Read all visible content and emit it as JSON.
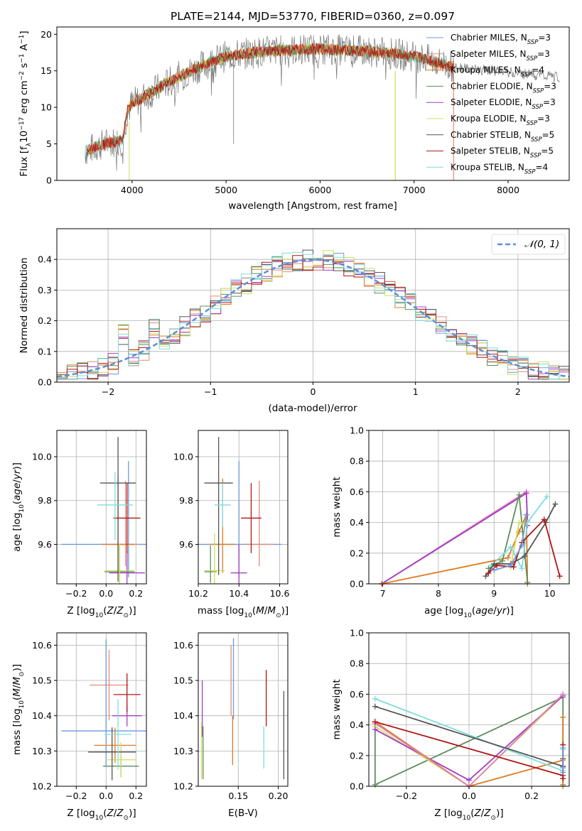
{
  "colors": {
    "chabrier_miles": "#6f98dd",
    "salpeter_miles": "#e48b78",
    "kroupa_miles": "#e07a22",
    "chabrier_elodie": "#5d8d5d",
    "salpeter_elodie": "#a23fc4",
    "kroupa_elodie": "#cde05a",
    "chabrier_stelib": "#555555",
    "salpeter_stelib": "#b01515",
    "kroupa_stelib": "#80dcdc",
    "pink_line": "#e07fb6",
    "gaussian": "#5b8fd6",
    "grid": "#b0b0b0"
  },
  "chart_data": [
    {
      "id": "spectrum",
      "type": "line",
      "title": "PLATE=2144, MJD=53770, FIBERID=0360, z=0.097",
      "xlabel": "wavelength [Angstrom, rest frame]",
      "ylabel": "Flux [fλ10⁻¹⁷ erg cm⁻² s⁻¹ A⁻¹]",
      "xlim": [
        3200,
        8650
      ],
      "ylim": [
        0,
        21
      ],
      "xticks": [
        "4000",
        "5000",
        "6000",
        "7000",
        "8000"
      ],
      "yticks": [
        "0",
        "5",
        "10",
        "15",
        "20"
      ],
      "grid": false,
      "legend_position": "right",
      "legend": [
        {
          "label": "Chabrier MILES, N",
          "sub": "SSP",
          "suffix": "=3",
          "color": "chabrier_miles"
        },
        {
          "label": "Salpeter MILES, N",
          "sub": "SSP",
          "suffix": "=3",
          "color": "salpeter_miles"
        },
        {
          "label": "Kroupa MILES, N",
          "sub": "SSP",
          "suffix": "=4",
          "color": "kroupa_miles"
        },
        {
          "label": "Chabrier ELODIE, N",
          "sub": "SSP",
          "suffix": "=3",
          "color": "chabrier_elodie"
        },
        {
          "label": "Salpeter ELODIE, N",
          "sub": "SSP",
          "suffix": "=3",
          "color": "salpeter_elodie"
        },
        {
          "label": "Kroupa ELODIE, N",
          "sub": "SSP",
          "suffix": "=3",
          "color": "kroupa_elodie"
        },
        {
          "label": "Chabrier STELIB, N",
          "sub": "SSP",
          "suffix": "=5",
          "color": "chabrier_stelib"
        },
        {
          "label": "Salpeter STELIB, N",
          "sub": "SSP",
          "suffix": "=5",
          "color": "salpeter_stelib"
        },
        {
          "label": "Kroupa STELIB, N",
          "sub": "SSP",
          "suffix": "=4",
          "color": "kroupa_stelib"
        }
      ],
      "continuum": {
        "x": [
          3500,
          3700,
          3900,
          3950,
          4000,
          4200,
          4500,
          4800,
          5000,
          5300,
          5600,
          6000,
          6300,
          6600,
          7000,
          7300,
          7420
        ],
        "y": [
          4.0,
          5.0,
          5.5,
          9.5,
          10.5,
          12.0,
          14.2,
          16.0,
          17.0,
          17.5,
          17.8,
          18.0,
          17.8,
          17.6,
          17.0,
          16.0,
          15.5
        ]
      },
      "ranges": [
        {
          "series": "data",
          "x": [
            3500,
            8550
          ]
        },
        {
          "series": "kroupa_stelib",
          "x": [
            3500,
            7420
          ]
        },
        {
          "series": "kroupa_elodie",
          "x": [
            3900,
            6800
          ]
        },
        {
          "series": "kroupa_miles",
          "x": [
            3520,
            7420
          ]
        },
        {
          "series": "salpeter_miles",
          "x": [
            3520,
            7420
          ]
        }
      ]
    },
    {
      "id": "residuals",
      "type": "line",
      "xlabel": "(data-model)/error",
      "ylabel": "Normed distribution",
      "xlim": [
        -2.5,
        2.5
      ],
      "ylim": [
        0,
        0.5
      ],
      "xticks": [
        "−2",
        "−1",
        "0",
        "1",
        "2"
      ],
      "yticks": [
        "0.0",
        "0.1",
        "0.2",
        "0.3",
        "0.4"
      ],
      "grid": true,
      "legend_position": "upper right",
      "legend": [
        {
          "label": "𝒩(0, 1)",
          "color": "gaussian",
          "style": "dashed"
        }
      ],
      "bin_width": 0.1
    },
    {
      "id": "age-vs-Z",
      "type": "scatter",
      "xlabel": "Z [log₁₀(Z/Z⊙)]",
      "ylabel": "age  [log₁₀(age/yr)]",
      "xlim": [
        -0.33,
        0.27
      ],
      "ylim": [
        9.42,
        10.12
      ],
      "xticks": [
        "−0.2",
        "0.0",
        "0.2"
      ],
      "yticks": [
        "9.6",
        "9.8",
        "10.0"
      ],
      "grid": true,
      "points": [
        {
          "series": "chabrier_miles",
          "x": 0.15,
          "xerr": 0.45,
          "y": 9.6,
          "yerr_low": 0.15,
          "yerr_high": 0.38
        },
        {
          "series": "salpeter_miles",
          "x": 0.13,
          "xerr": 0.09,
          "y": 9.6,
          "yerr_low": 0.1,
          "yerr_high": 0.29
        },
        {
          "series": "kroupa_miles",
          "x": 0.08,
          "xerr": 0.11,
          "y": 9.6,
          "yerr_low": 0.13,
          "yerr_high": 0.31
        },
        {
          "series": "chabrier_elodie",
          "x": 0.09,
          "xerr": 0.1,
          "y": 9.475,
          "yerr_low": 0.05,
          "yerr_high": 0.12
        },
        {
          "series": "salpeter_elodie",
          "x": 0.14,
          "xerr": 0.12,
          "y": 9.47,
          "yerr_low": 0.05,
          "yerr_high": 0.1
        },
        {
          "series": "kroupa_elodie",
          "x": 0.09,
          "xerr": 0.1,
          "y": 9.48,
          "yerr_low": 0.06,
          "yerr_high": 0.12
        },
        {
          "series": "chabrier_stelib",
          "x": 0.08,
          "xerr": 0.12,
          "y": 9.88,
          "yerr_low": 0.45,
          "yerr_high": 0.21
        },
        {
          "series": "salpeter_stelib",
          "x": 0.14,
          "xerr": 0.09,
          "y": 9.72,
          "yerr_low": 0.16,
          "yerr_high": 0.16
        },
        {
          "series": "kroupa_stelib",
          "x": 0.06,
          "xerr": 0.12,
          "y": 9.78,
          "yerr_low": 0.16,
          "yerr_high": 0.15
        }
      ]
    },
    {
      "id": "age-vs-mass",
      "type": "scatter",
      "xlabel": "mass [log₁₀(M/M⊙)]",
      "ylabel": "",
      "xlim": [
        10.2,
        10.64
      ],
      "ylim": [
        9.42,
        10.12
      ],
      "xticks": [
        "10.2",
        "10.4",
        "10.6"
      ],
      "yticks": [
        "9.6",
        "9.8",
        "10.0"
      ],
      "grid": true,
      "points": [
        {
          "series": "chabrier_miles",
          "x": 10.4,
          "xerr": 0.21,
          "y": 9.6,
          "yerr_low": 0.15,
          "yerr_high": 0.38
        },
        {
          "series": "salpeter_miles",
          "x": 10.5,
          "xerr": 0.07,
          "y": 9.6,
          "yerr_low": 0.1,
          "yerr_high": 0.29
        },
        {
          "series": "kroupa_miles",
          "x": 10.32,
          "xerr": 0.06,
          "y": 9.6,
          "yerr_low": 0.13,
          "yerr_high": 0.3
        },
        {
          "series": "chabrier_elodie",
          "x": 10.26,
          "xerr": 0.03,
          "y": 9.475,
          "yerr_low": 0.05,
          "yerr_high": 0.12
        },
        {
          "series": "salpeter_elodie",
          "x": 10.4,
          "xerr": 0.04,
          "y": 9.47,
          "yerr_low": 0.05,
          "yerr_high": 0.13
        },
        {
          "series": "kroupa_elodie",
          "x": 10.28,
          "xerr": 0.05,
          "y": 9.48,
          "yerr_low": 0.06,
          "yerr_high": 0.17
        },
        {
          "series": "chabrier_stelib",
          "x": 10.3,
          "xerr": 0.07,
          "y": 9.88,
          "yerr_low": 0.42,
          "yerr_high": 0.21
        },
        {
          "series": "salpeter_stelib",
          "x": 10.46,
          "xerr": 0.05,
          "y": 9.72,
          "yerr_low": 0.16,
          "yerr_high": 0.16
        },
        {
          "series": "kroupa_stelib",
          "x": 10.32,
          "xerr": 0.04,
          "y": 9.78,
          "yerr_low": 0.1,
          "yerr_high": 0.1
        }
      ]
    },
    {
      "id": "weight-vs-age",
      "type": "line",
      "xlabel": "age  [log₁₀(age/yr)]",
      "ylabel": "mass weight",
      "xlim": [
        6.75,
        10.35
      ],
      "ylim": [
        0,
        1.0
      ],
      "xticks": [
        "7",
        "8",
        "9",
        "10"
      ],
      "yticks": [
        "0.0",
        "0.2",
        "0.4",
        "0.6",
        "0.8",
        "1.0"
      ],
      "grid": true,
      "series": [
        {
          "name": "pink_line",
          "x": [
            6.98,
            9.58,
            9.6
          ],
          "y": [
            0.0,
            0.6,
            0.41
          ]
        },
        {
          "name": "salpeter_elodie",
          "x": [
            6.98,
            9.58,
            9.6
          ],
          "y": [
            0.0,
            0.59,
            0.38
          ]
        },
        {
          "name": "kroupa_miles",
          "x": [
            6.98,
            9.25,
            9.45,
            9.58,
            9.6
          ],
          "y": [
            0.0,
            0.17,
            0.34,
            0.45,
            0.0
          ]
        },
        {
          "name": "chabrier_elodie",
          "x": [
            8.9,
            9.15,
            9.45,
            9.6
          ],
          "y": [
            0.1,
            0.15,
            0.58,
            0.01
          ]
        },
        {
          "name": "kroupa_elodie",
          "x": [
            9.3,
            9.45,
            9.55
          ],
          "y": [
            0.11,
            0.4,
            0.39
          ]
        },
        {
          "name": "kroupa_stelib",
          "x": [
            8.95,
            9.3,
            9.5,
            9.6,
            9.95
          ],
          "y": [
            0.12,
            0.24,
            0.1,
            0.4,
            0.57
          ]
        },
        {
          "name": "chabrier_stelib",
          "x": [
            8.85,
            9.0,
            9.3,
            9.55,
            9.93,
            10.1
          ],
          "y": [
            0.05,
            0.13,
            0.13,
            0.18,
            0.4,
            0.52
          ]
        },
        {
          "name": "salpeter_stelib",
          "x": [
            8.9,
            9.05,
            9.35,
            9.5,
            9.9,
            10.18
          ],
          "y": [
            0.07,
            0.12,
            0.11,
            0.27,
            0.42,
            0.05
          ]
        },
        {
          "name": "chabrier_miles",
          "x": [
            9.0,
            9.3,
            9.5,
            9.58
          ],
          "y": [
            0.09,
            0.12,
            0.25,
            0.45
          ]
        }
      ]
    },
    {
      "id": "mass-vs-Z",
      "type": "scatter",
      "xlabel": "Z [log₁₀(Z/Z⊙)]",
      "ylabel": "mass [log₁₀(M/M⊙)]",
      "xlim": [
        -0.33,
        0.27
      ],
      "ylim": [
        10.2,
        10.635
      ],
      "xticks": [
        "−0.2",
        "0.0",
        "0.2"
      ],
      "yticks": [
        "10.2",
        "10.3",
        "10.4",
        "10.5",
        "10.6"
      ],
      "grid": true,
      "points": [
        {
          "series": "chabrier_miles",
          "x": 0.0,
          "xerr": 0.3,
          "y": 10.357,
          "yerr_low": 0.1,
          "yerr_high": 0.26
        },
        {
          "series": "salpeter_miles",
          "x": 0.02,
          "xerr": 0.13,
          "y": 10.487,
          "yerr_low": 0.1,
          "yerr_high": 0.1
        },
        {
          "series": "kroupa_miles",
          "x": 0.06,
          "xerr": 0.14,
          "y": 10.316,
          "yerr_low": 0.05,
          "yerr_high": 0.05
        },
        {
          "series": "chabrier_elodie",
          "x": 0.1,
          "xerr": 0.12,
          "y": 10.257,
          "yerr_low": 0.03,
          "yerr_high": 0.03
        },
        {
          "series": "salpeter_elodie",
          "x": 0.14,
          "xerr": 0.1,
          "y": 10.4,
          "yerr_low": 0.03,
          "yerr_high": 0.03
        },
        {
          "series": "kroupa_elodie",
          "x": 0.1,
          "xerr": 0.1,
          "y": 10.275,
          "yerr_low": 0.05,
          "yerr_high": 0.05
        },
        {
          "series": "chabrier_stelib",
          "x": 0.04,
          "xerr": 0.16,
          "y": 10.297,
          "yerr_low": 0.08,
          "yerr_high": 0.07
        },
        {
          "series": "salpeter_stelib",
          "x": 0.14,
          "xerr": 0.09,
          "y": 10.46,
          "yerr_low": 0.05,
          "yerr_high": 0.06
        },
        {
          "series": "kroupa_stelib",
          "x": 0.08,
          "xerr": 0.09,
          "y": 10.347,
          "yerr_low": 0.1,
          "yerr_high": 0.1
        }
      ]
    },
    {
      "id": "mass-vs-EBV",
      "type": "scatter",
      "xlabel": "E(B-V)",
      "ylabel": "",
      "xlim": [
        0.1,
        0.212
      ],
      "ylim": [
        10.2,
        10.635
      ],
      "xticks": [
        "0.15",
        "0.20"
      ],
      "yticks": [
        "10.2",
        "10.3",
        "10.4",
        "10.5",
        "10.6"
      ],
      "grid": true,
      "points": [
        {
          "series": "chabrier_miles",
          "x": 0.144,
          "y": 10.45,
          "yerr_low": 0.06,
          "yerr_high": 0.17
        },
        {
          "series": "salpeter_miles",
          "x": 0.141,
          "y": 10.5,
          "yerr_low": 0.1,
          "yerr_high": 0.1
        },
        {
          "series": "kroupa_miles",
          "x": 0.143,
          "y": 10.35,
          "yerr_low": 0.09,
          "yerr_high": 0.05
        },
        {
          "series": "chabrier_elodie",
          "x": 0.106,
          "y": 10.3,
          "yerr_low": 0.08,
          "yerr_high": 0.07
        },
        {
          "series": "salpeter_elodie",
          "x": 0.105,
          "y": 10.42,
          "yerr_low": 0.08,
          "yerr_high": 0.08
        },
        {
          "series": "kroupa_elodie",
          "x": 0.104,
          "y": 10.3,
          "yerr_low": 0.08,
          "yerr_high": 0.08
        },
        {
          "series": "chabrier_stelib",
          "x": 0.207,
          "y": 10.34,
          "yerr_low": 0.12,
          "yerr_high": 0.13
        },
        {
          "series": "salpeter_stelib",
          "x": 0.185,
          "y": 10.45,
          "yerr_low": 0.08,
          "yerr_high": 0.08
        },
        {
          "series": "kroupa_stelib",
          "x": 0.182,
          "y": 10.31,
          "yerr_low": 0.06,
          "yerr_high": 0.06
        }
      ]
    },
    {
      "id": "weight-vs-Z",
      "type": "line",
      "xlabel": "Z [log₁₀(Z/Z⊙)]",
      "ylabel": "mass weight",
      "xlim": [
        -0.32,
        0.32
      ],
      "ylim": [
        0,
        1.0
      ],
      "xticks": [
        "−0.2",
        "0.0",
        "0.2"
      ],
      "yticks": [
        "0.0",
        "0.2",
        "0.4",
        "0.6",
        "0.8",
        "1.0"
      ],
      "grid": true,
      "series": [
        {
          "name": "chabrier_elodie",
          "x": [
            -0.3,
            -0.3,
            0.3,
            0.3
          ],
          "y": [
            0.42,
            0.01,
            0.58,
            0.01
          ]
        },
        {
          "name": "kroupa_elodie",
          "x": [
            -0.3,
            0.0,
            0.3
          ],
          "y": [
            0.39,
            0.0,
            0.59
          ]
        },
        {
          "name": "salpeter_elodie",
          "x": [
            -0.3,
            0.0,
            0.3
          ],
          "y": [
            0.37,
            0.04,
            0.59
          ]
        },
        {
          "name": "kroupa_miles",
          "x": [
            -0.3,
            0.0,
            0.3,
            0.3,
            0.3
          ],
          "y": [
            0.42,
            0.0,
            0.17,
            0.45,
            0.0
          ]
        },
        {
          "name": "pink_line",
          "x": [
            -0.3,
            0.0,
            0.3
          ],
          "y": [
            0.41,
            0.0,
            0.6
          ]
        },
        {
          "name": "kroupa_stelib",
          "x": [
            -0.3,
            0.3,
            0.3
          ],
          "y": [
            0.57,
            0.1,
            0.24
          ]
        },
        {
          "name": "chabrier_stelib",
          "x": [
            -0.3,
            0.3,
            0.3
          ],
          "y": [
            0.52,
            0.13,
            0.18
          ]
        },
        {
          "name": "salpeter_stelib",
          "x": [
            -0.3,
            0.3,
            0.3,
            0.3
          ],
          "y": [
            0.42,
            0.07,
            0.27,
            0.05
          ]
        },
        {
          "name": "chabrier_miles",
          "x": [
            0.3,
            0.3,
            0.3
          ],
          "y": [
            0.09,
            0.12,
            0.25
          ]
        }
      ]
    }
  ]
}
